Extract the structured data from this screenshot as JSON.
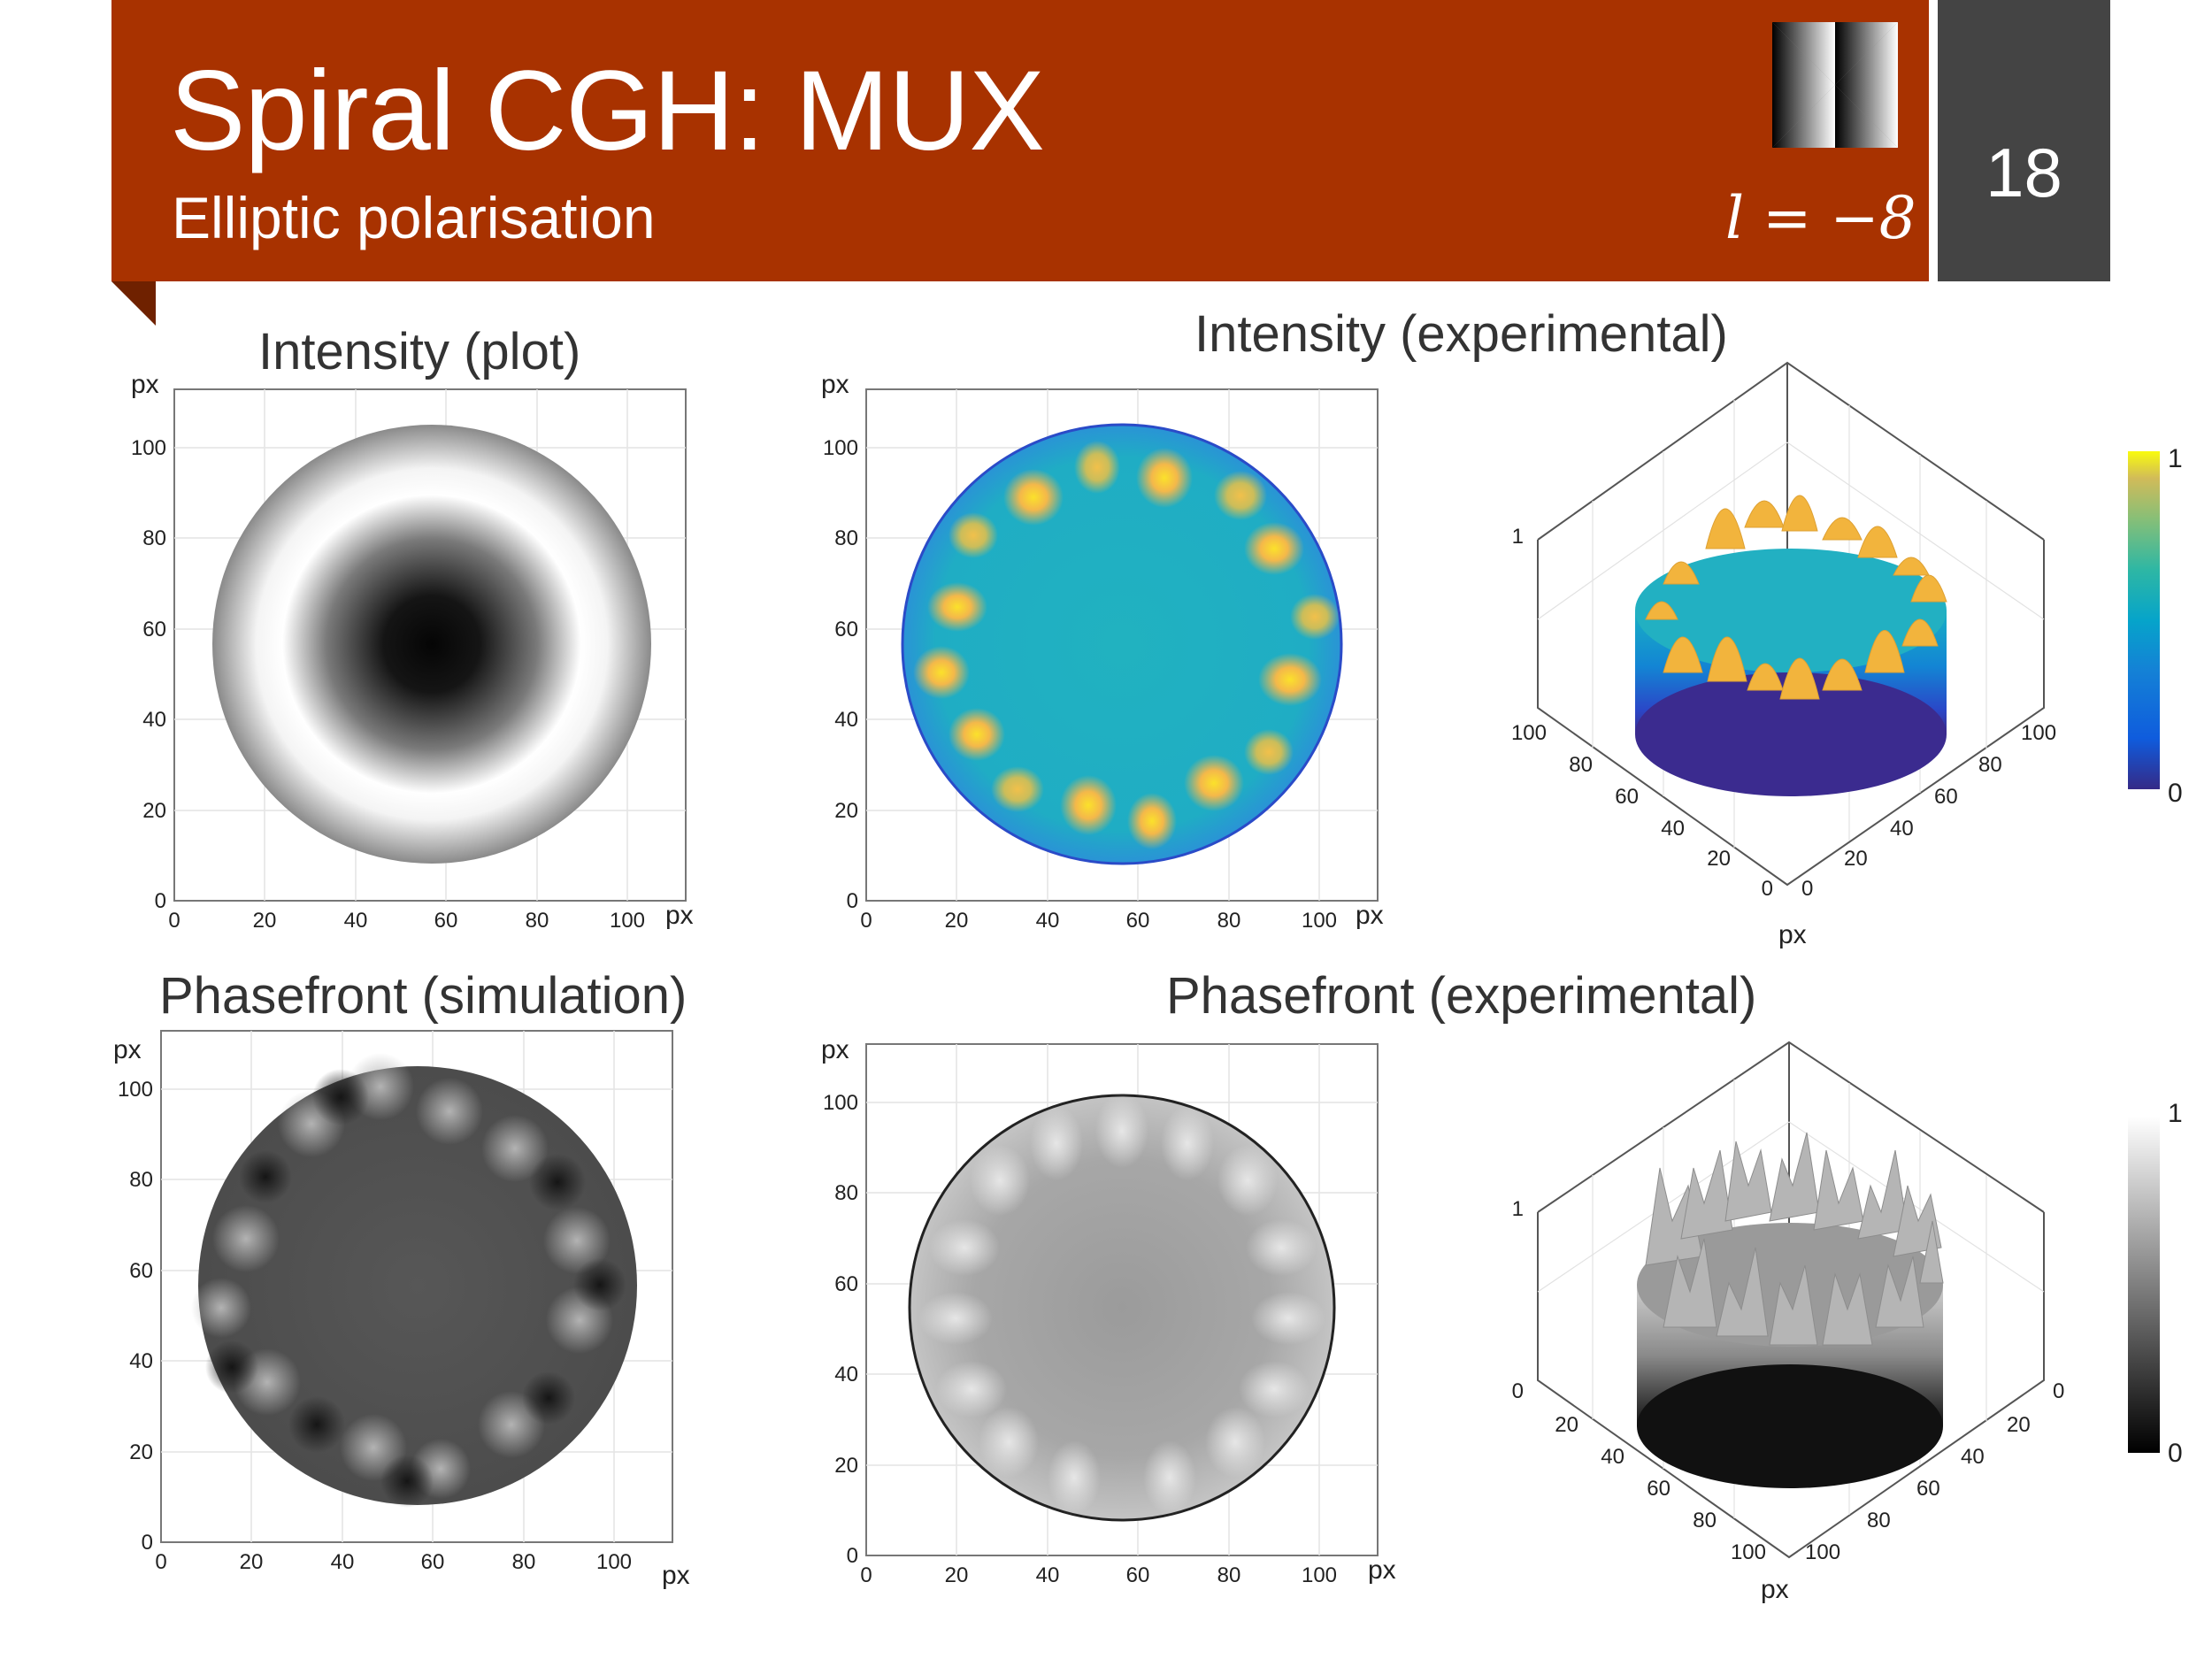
{
  "header": {
    "title": "Spiral CGH: MUX",
    "subtitle": "Elliptic polarisation",
    "l_value": "l = −8",
    "page_number": "18",
    "accent_color": "#a83200",
    "page_box_color": "#444444"
  },
  "panels": {
    "intensity_plot": {
      "title": "Intensity (plot)",
      "x_unit": "px",
      "y_unit": "px",
      "x_ticks": [
        "0",
        "20",
        "40",
        "60",
        "80",
        "100"
      ],
      "y_ticks": [
        "0",
        "20",
        "40",
        "60",
        "80",
        "100"
      ]
    },
    "intensity_experimental": {
      "title": "Intensity (experimental)",
      "x_unit": "px",
      "y_unit": "px",
      "x_ticks": [
        "0",
        "20",
        "40",
        "60",
        "80",
        "100"
      ],
      "y_ticks": [
        "0",
        "20",
        "40",
        "60",
        "80",
        "100"
      ],
      "surface": {
        "z_tick": "1",
        "left_ticks": [
          "100",
          "80",
          "60",
          "40",
          "20",
          "0"
        ],
        "right_ticks": [
          "0",
          "20",
          "40",
          "60",
          "80",
          "100"
        ],
        "unit": "px"
      },
      "colorbar": {
        "max": "1",
        "min": "0",
        "colormap": "parula"
      }
    },
    "phasefront_simulation": {
      "title": "Phasefront (simulation)",
      "x_unit": "px",
      "y_unit": "px",
      "x_ticks": [
        "0",
        "20",
        "40",
        "60",
        "80",
        "100"
      ],
      "y_ticks": [
        "0",
        "20",
        "40",
        "60",
        "80",
        "100"
      ]
    },
    "phasefront_experimental": {
      "title": "Phasefront (experimental)",
      "x_unit": "px",
      "y_unit": "px",
      "x_ticks": [
        "0",
        "20",
        "40",
        "60",
        "80",
        "100"
      ],
      "y_ticks": [
        "0",
        "20",
        "40",
        "60",
        "80",
        "100"
      ],
      "surface": {
        "z_tick": "1",
        "left_ticks": [
          "0",
          "20",
          "40",
          "60",
          "80",
          "100"
        ],
        "right_ticks": [
          "100",
          "80",
          "60",
          "40",
          "20",
          "0"
        ],
        "unit": "px"
      },
      "colorbar": {
        "max": "1",
        "min": "0",
        "colormap": "gray"
      }
    }
  }
}
